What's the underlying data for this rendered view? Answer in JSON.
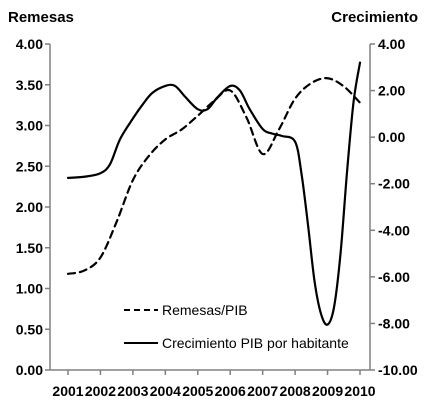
{
  "chart_data": {
    "type": "line",
    "left_axis_title": "Remesas",
    "right_axis_title": "Crecimiento",
    "x": [
      2001,
      2002,
      2003,
      2004,
      2005,
      2006,
      2007,
      2008,
      2009,
      2010
    ],
    "x_tick_labels": [
      "2001",
      "2002",
      "2003",
      "2004",
      "2005",
      "2006",
      "2007",
      "2008",
      "2009",
      "2010"
    ],
    "left_ylim": [
      0.0,
      4.0
    ],
    "left_ticks": [
      "0.00",
      "0.50",
      "1.00",
      "1.50",
      "2.00",
      "2.50",
      "3.00",
      "3.50",
      "4.00"
    ],
    "right_ylim": [
      -10.0,
      4.0
    ],
    "right_ticks": [
      "-10.00",
      "-8.00",
      "-6.00",
      "-4.00",
      "-2.00",
      "0.00",
      "2.00",
      "4.00"
    ],
    "grid": false,
    "legend_position": "bottom-center",
    "series": [
      {
        "name": "Remesas/PIB",
        "axis": "left",
        "style": "dashed",
        "color": "#000000",
        "x": [
          2001.0,
          2001.5,
          2002.0,
          2002.5,
          2003.0,
          2003.5,
          2004.0,
          2004.5,
          2005.0,
          2005.5,
          2006.0,
          2006.5,
          2007.0,
          2007.5,
          2008.0,
          2008.5,
          2009.0,
          2009.5,
          2010.0
        ],
        "values": [
          1.18,
          1.22,
          1.38,
          1.82,
          2.33,
          2.63,
          2.83,
          2.95,
          3.12,
          3.3,
          3.43,
          3.1,
          2.65,
          2.95,
          3.33,
          3.52,
          3.58,
          3.48,
          3.28
        ]
      },
      {
        "name": "Crecimiento PIB por habitante",
        "axis": "right",
        "style": "solid",
        "color": "#000000",
        "x": [
          2001.0,
          2001.5,
          2002.0,
          2002.3,
          2002.6,
          2003.0,
          2003.3,
          2003.6,
          2004.0,
          2004.3,
          2004.6,
          2005.0,
          2005.3,
          2005.6,
          2006.0,
          2006.3,
          2006.6,
          2007.0,
          2007.3,
          2007.6,
          2008.0,
          2008.2,
          2008.4,
          2008.6,
          2008.8,
          2009.0,
          2009.2,
          2009.4,
          2009.6,
          2009.8,
          2010.0
        ],
        "values": [
          -1.75,
          -1.7,
          -1.55,
          -1.15,
          -0.1,
          0.8,
          1.4,
          1.9,
          2.2,
          2.2,
          1.75,
          1.2,
          1.2,
          1.7,
          2.2,
          2.0,
          1.2,
          0.35,
          0.15,
          0.05,
          -0.2,
          -1.6,
          -3.8,
          -6.2,
          -7.6,
          -8.05,
          -7.3,
          -5.0,
          -1.5,
          1.5,
          3.2
        ]
      }
    ]
  }
}
